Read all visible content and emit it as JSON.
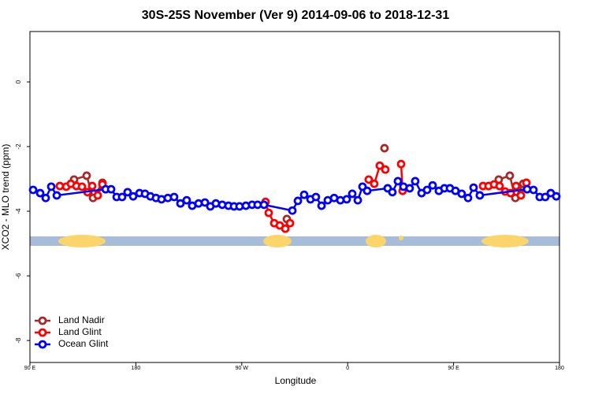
{
  "chart_data": {
    "type": "line",
    "title": "30S-25S November (Ver 9)   2014-09-06 to 2018-12-31",
    "xlabel": "Longitude",
    "ylabel": "XCO2 - MLO trend (ppm)",
    "xlim": [
      90,
      540
    ],
    "ylim": [
      -8.68,
      1.56
    ],
    "xticks": [
      {
        "value": 90,
        "label": "90 E"
      },
      {
        "value": 180,
        "label": "180"
      },
      {
        "value": 270,
        "label": "90 W"
      },
      {
        "value": 360,
        "label": "0"
      },
      {
        "value": 450,
        "label": "90 E"
      },
      {
        "value": 540,
        "label": "180"
      }
    ],
    "yticks": [
      0,
      -2,
      -4,
      -6,
      -8
    ],
    "legend": "bottom-left",
    "series": [
      {
        "name": "Land Nadir",
        "color": "#a52a2a",
        "x": [
          127.5,
          138.2,
          143.6,
          151.6,
          null,
          308.3,
          null,
          391.3,
          null,
          488.4,
          497.8,
          502.5,
          509.2
        ],
        "values": [
          -3.02,
          -2.9,
          -3.59,
          -3.12,
          null,
          -4.24,
          null,
          -2.05,
          null,
          -3.02,
          -2.9,
          -3.59,
          -3.15
        ]
      },
      {
        "name": "Land Glint",
        "color": "#ff0000",
        "x": [
          115.4,
          120.8,
          124.8,
          129.5,
          134.2,
          138.9,
          142.9,
          147.6,
          151.6,
          null,
          290.2,
          292.9,
          297.6,
          302.3,
          307.0,
          311.0,
          null,
          377.9,
          382.6,
          387.3,
          392.0,
          null,
          405.4,
          406.7,
          null,
          475.0,
          479.7,
          484.4,
          489.1,
          493.8,
          498.5,
          503.1,
          507.2,
          511.9
        ],
        "values": [
          -3.22,
          -3.24,
          -3.15,
          -3.22,
          -3.24,
          -3.41,
          -3.22,
          -3.51,
          -3.17,
          null,
          -3.71,
          -4.05,
          -4.37,
          -4.44,
          -4.54,
          -4.37,
          null,
          -3.02,
          -3.15,
          -2.59,
          -2.71,
          null,
          -2.54,
          -3.37,
          null,
          -3.22,
          -3.22,
          -3.17,
          -3.22,
          -3.39,
          -3.44,
          -3.22,
          -3.51,
          -3.12
        ]
      },
      {
        "name": "Ocean Glint",
        "color": "#0000ff",
        "x": [
          92.7,
          98.7,
          103.4,
          108.1,
          112.8,
          154.3,
          159.0,
          163.7,
          168.3,
          173.0,
          177.7,
          183.1,
          187.8,
          192.4,
          197.1,
          201.8,
          207.2,
          212.5,
          217.9,
          223.2,
          227.9,
          233.3,
          238.7,
          243.3,
          248.0,
          253.4,
          258.7,
          263.4,
          268.1,
          273.5,
          278.8,
          283.5,
          288.9,
          313.0,
          317.7,
          323.0,
          328.4,
          333.0,
          337.8,
          343.1,
          348.5,
          353.8,
          359.2,
          363.9,
          368.6,
          372.6,
          376.6,
          394.0,
          398.0,
          402.7,
          407.4,
          412.7,
          417.4,
          422.8,
          427.5,
          432.2,
          437.5,
          442.2,
          446.9,
          451.6,
          456.9,
          462.3,
          467.0,
          472.3,
          512.5,
          517.9,
          523.2,
          527.9,
          532.6,
          537.3
        ],
        "values": [
          -3.34,
          -3.44,
          -3.59,
          -3.24,
          -3.51,
          -3.32,
          -3.32,
          -3.56,
          -3.56,
          -3.41,
          -3.54,
          -3.44,
          -3.46,
          -3.54,
          -3.59,
          -3.63,
          -3.59,
          -3.56,
          -3.76,
          -3.66,
          -3.83,
          -3.76,
          -3.73,
          -3.85,
          -3.76,
          -3.8,
          -3.83,
          -3.85,
          -3.85,
          -3.83,
          -3.8,
          -3.8,
          -3.8,
          -3.98,
          -3.68,
          -3.49,
          -3.63,
          -3.56,
          -3.83,
          -3.66,
          -3.59,
          -3.66,
          -3.63,
          -3.46,
          -3.66,
          -3.24,
          -3.37,
          -3.29,
          -3.41,
          -3.07,
          -3.24,
          -3.29,
          -3.07,
          -3.44,
          -3.34,
          -3.2,
          -3.37,
          -3.29,
          -3.29,
          -3.37,
          -3.46,
          -3.59,
          -3.27,
          -3.51,
          -3.32,
          -3.34,
          -3.56,
          -3.56,
          -3.44,
          -3.54
        ]
      }
    ]
  }
}
